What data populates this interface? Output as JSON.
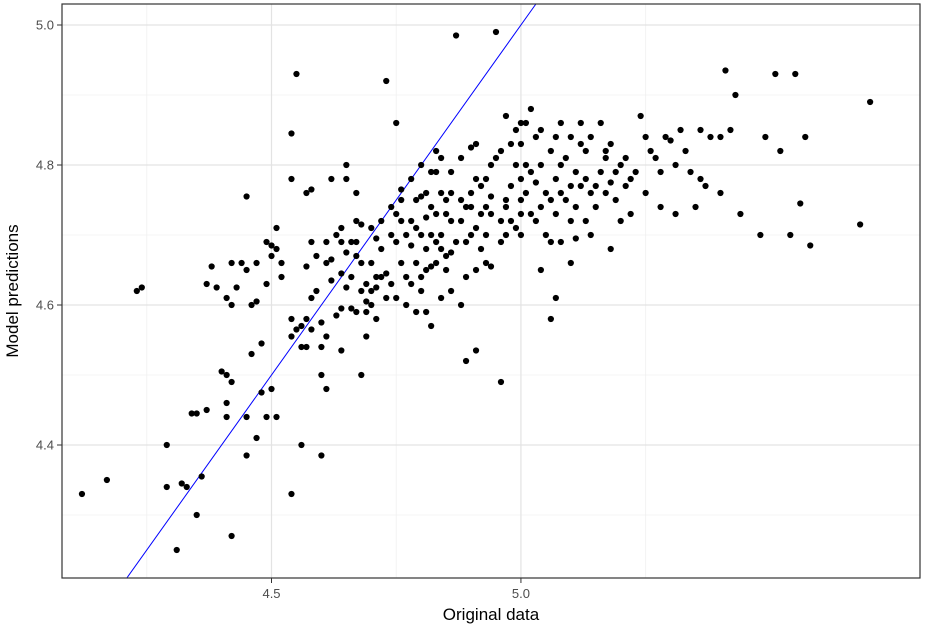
{
  "chart_data": {
    "type": "scatter",
    "title": "",
    "xlabel": "Original data",
    "ylabel": "Model predictions",
    "xlim": [
      4.08,
      5.8
    ],
    "ylim": [
      4.21,
      5.03
    ],
    "x_ticks": [
      4.5,
      5.0
    ],
    "x_tick_labels": [
      "4.5",
      "5.0"
    ],
    "y_ticks": [
      4.4,
      4.6,
      4.8,
      5.0
    ],
    "y_tick_labels": [
      "4.4",
      "4.6",
      "4.8",
      "5.0"
    ],
    "grid": true,
    "legend": "none",
    "reference_line": {
      "slope": 1,
      "intercept": 0,
      "color": "#0000ff"
    },
    "point_color": "#000000",
    "points": [
      [
        4.12,
        4.33
      ],
      [
        4.17,
        4.35
      ],
      [
        4.23,
        4.62
      ],
      [
        4.24,
        4.625
      ],
      [
        4.29,
        4.4
      ],
      [
        4.29,
        4.34
      ],
      [
        4.31,
        4.25
      ],
      [
        4.32,
        4.345
      ],
      [
        4.33,
        4.34
      ],
      [
        4.34,
        4.445
      ],
      [
        4.35,
        4.3
      ],
      [
        4.35,
        4.445
      ],
      [
        4.36,
        4.355
      ],
      [
        4.37,
        4.63
      ],
      [
        4.37,
        4.45
      ],
      [
        4.38,
        4.655
      ],
      [
        4.39,
        4.625
      ],
      [
        4.4,
        4.505
      ],
      [
        4.41,
        4.5
      ],
      [
        4.41,
        4.44
      ],
      [
        4.41,
        4.46
      ],
      [
        4.42,
        4.49
      ],
      [
        4.41,
        4.61
      ],
      [
        4.42,
        4.6
      ],
      [
        4.42,
        4.66
      ],
      [
        4.42,
        4.27
      ],
      [
        4.43,
        4.625
      ],
      [
        4.44,
        4.66
      ],
      [
        4.45,
        4.755
      ],
      [
        4.45,
        4.65
      ],
      [
        4.45,
        4.44
      ],
      [
        4.45,
        4.385
      ],
      [
        4.46,
        4.53
      ],
      [
        4.46,
        4.6
      ],
      [
        4.47,
        4.41
      ],
      [
        4.47,
        4.605
      ],
      [
        4.47,
        4.66
      ],
      [
        4.48,
        4.545
      ],
      [
        4.48,
        4.475
      ],
      [
        4.49,
        4.69
      ],
      [
        4.49,
        4.63
      ],
      [
        4.49,
        4.44
      ],
      [
        4.5,
        4.48
      ],
      [
        4.5,
        4.67
      ],
      [
        4.5,
        4.685
      ],
      [
        4.51,
        4.71
      ],
      [
        4.51,
        4.68
      ],
      [
        4.51,
        4.44
      ],
      [
        4.52,
        4.66
      ],
      [
        4.52,
        4.64
      ],
      [
        4.54,
        4.78
      ],
      [
        4.54,
        4.845
      ],
      [
        4.54,
        4.58
      ],
      [
        4.54,
        4.555
      ],
      [
        4.54,
        4.33
      ],
      [
        4.55,
        4.93
      ],
      [
        4.55,
        4.565
      ],
      [
        4.56,
        4.57
      ],
      [
        4.56,
        4.54
      ],
      [
        4.56,
        4.4
      ],
      [
        4.57,
        4.76
      ],
      [
        4.57,
        4.655
      ],
      [
        4.57,
        4.58
      ],
      [
        4.57,
        4.54
      ],
      [
        4.58,
        4.69
      ],
      [
        4.58,
        4.765
      ],
      [
        4.58,
        4.61
      ],
      [
        4.58,
        4.565
      ],
      [
        4.59,
        4.67
      ],
      [
        4.59,
        4.62
      ],
      [
        4.6,
        4.575
      ],
      [
        4.6,
        4.54
      ],
      [
        4.6,
        4.5
      ],
      [
        4.6,
        4.385
      ],
      [
        4.61,
        4.69
      ],
      [
        4.61,
        4.66
      ],
      [
        4.61,
        4.555
      ],
      [
        4.61,
        4.48
      ],
      [
        4.62,
        4.78
      ],
      [
        4.62,
        4.665
      ],
      [
        4.62,
        4.635
      ],
      [
        4.63,
        4.585
      ],
      [
        4.63,
        4.7
      ],
      [
        4.64,
        4.71
      ],
      [
        4.64,
        4.69
      ],
      [
        4.64,
        4.645
      ],
      [
        4.64,
        4.595
      ],
      [
        4.64,
        4.535
      ],
      [
        4.65,
        4.78
      ],
      [
        4.65,
        4.8
      ],
      [
        4.65,
        4.675
      ],
      [
        4.65,
        4.625
      ],
      [
        4.66,
        4.69
      ],
      [
        4.66,
        4.64
      ],
      [
        4.66,
        4.595
      ],
      [
        4.67,
        4.59
      ],
      [
        4.67,
        4.67
      ],
      [
        4.67,
        4.72
      ],
      [
        4.67,
        4.69
      ],
      [
        4.67,
        4.76
      ],
      [
        4.68,
        4.66
      ],
      [
        4.68,
        4.715
      ],
      [
        4.68,
        4.5
      ],
      [
        4.68,
        4.62
      ],
      [
        4.69,
        4.59
      ],
      [
        4.69,
        4.605
      ],
      [
        4.69,
        4.555
      ],
      [
        4.69,
        4.63
      ],
      [
        4.7,
        4.71
      ],
      [
        4.7,
        4.62
      ],
      [
        4.7,
        4.66
      ],
      [
        4.7,
        4.6
      ],
      [
        4.71,
        4.625
      ],
      [
        4.71,
        4.695
      ],
      [
        4.71,
        4.64
      ],
      [
        4.71,
        4.58
      ],
      [
        4.72,
        4.72
      ],
      [
        4.72,
        4.68
      ],
      [
        4.72,
        4.64
      ],
      [
        4.73,
        4.92
      ],
      [
        4.73,
        4.645
      ],
      [
        4.73,
        4.61
      ],
      [
        4.74,
        4.74
      ],
      [
        4.74,
        4.7
      ],
      [
        4.74,
        4.63
      ],
      [
        4.75,
        4.86
      ],
      [
        4.75,
        4.73
      ],
      [
        4.75,
        4.69
      ],
      [
        4.75,
        4.61
      ],
      [
        4.76,
        4.75
      ],
      [
        4.76,
        4.765
      ],
      [
        4.76,
        4.72
      ],
      [
        4.76,
        4.66
      ],
      [
        4.77,
        4.7
      ],
      [
        4.77,
        4.64
      ],
      [
        4.77,
        4.6
      ],
      [
        4.78,
        4.78
      ],
      [
        4.78,
        4.72
      ],
      [
        4.78,
        4.685
      ],
      [
        4.78,
        4.63
      ],
      [
        4.79,
        4.75
      ],
      [
        4.79,
        4.71
      ],
      [
        4.79,
        4.66
      ],
      [
        4.79,
        4.59
      ],
      [
        4.8,
        4.8
      ],
      [
        4.8,
        4.755
      ],
      [
        4.8,
        4.7
      ],
      [
        4.8,
        4.64
      ],
      [
        4.8,
        4.62
      ],
      [
        4.81,
        4.76
      ],
      [
        4.81,
        4.725
      ],
      [
        4.81,
        4.68
      ],
      [
        4.81,
        4.65
      ],
      [
        4.81,
        4.59
      ],
      [
        4.82,
        4.79
      ],
      [
        4.82,
        4.74
      ],
      [
        4.82,
        4.7
      ],
      [
        4.82,
        4.655
      ],
      [
        4.82,
        4.57
      ],
      [
        4.83,
        4.79
      ],
      [
        4.83,
        4.82
      ],
      [
        4.83,
        4.73
      ],
      [
        4.83,
        4.69
      ],
      [
        4.83,
        4.66
      ],
      [
        4.84,
        4.81
      ],
      [
        4.84,
        4.76
      ],
      [
        4.84,
        4.7
      ],
      [
        4.84,
        4.68
      ],
      [
        4.84,
        4.61
      ],
      [
        4.85,
        4.75
      ],
      [
        4.85,
        4.73
      ],
      [
        4.85,
        4.67
      ],
      [
        4.85,
        4.65
      ],
      [
        4.86,
        4.79
      ],
      [
        4.86,
        4.76
      ],
      [
        4.86,
        4.72
      ],
      [
        4.86,
        4.675
      ],
      [
        4.86,
        4.62
      ],
      [
        4.87,
        4.69
      ],
      [
        4.87,
        4.985
      ],
      [
        4.88,
        4.81
      ],
      [
        4.88,
        4.75
      ],
      [
        4.88,
        4.72
      ],
      [
        4.88,
        4.6
      ],
      [
        4.89,
        4.74
      ],
      [
        4.89,
        4.69
      ],
      [
        4.89,
        4.64
      ],
      [
        4.89,
        4.52
      ],
      [
        4.9,
        4.825
      ],
      [
        4.9,
        4.76
      ],
      [
        4.9,
        4.74
      ],
      [
        4.9,
        4.7
      ],
      [
        4.91,
        4.83
      ],
      [
        4.91,
        4.78
      ],
      [
        4.91,
        4.71
      ],
      [
        4.91,
        4.65
      ],
      [
        4.91,
        4.535
      ],
      [
        4.92,
        4.77
      ],
      [
        4.92,
        4.73
      ],
      [
        4.92,
        4.68
      ],
      [
        4.93,
        4.78
      ],
      [
        4.93,
        4.74
      ],
      [
        4.93,
        4.7
      ],
      [
        4.93,
        4.66
      ],
      [
        4.94,
        4.8
      ],
      [
        4.94,
        4.755
      ],
      [
        4.94,
        4.73
      ],
      [
        4.94,
        4.655
      ],
      [
        4.95,
        4.81
      ],
      [
        4.95,
        4.99
      ],
      [
        4.96,
        4.82
      ],
      [
        4.96,
        4.72
      ],
      [
        4.96,
        4.69
      ],
      [
        4.96,
        4.49
      ],
      [
        4.97,
        4.87
      ],
      [
        4.97,
        4.75
      ],
      [
        4.97,
        4.74
      ],
      [
        4.97,
        4.7
      ],
      [
        4.98,
        4.83
      ],
      [
        4.98,
        4.77
      ],
      [
        4.98,
        4.72
      ],
      [
        4.99,
        4.85
      ],
      [
        4.99,
        4.8
      ],
      [
        4.99,
        4.71
      ],
      [
        5.0,
        4.86
      ],
      [
        5.0,
        4.83
      ],
      [
        5.0,
        4.78
      ],
      [
        5.0,
        4.75
      ],
      [
        5.0,
        4.73
      ],
      [
        5.0,
        4.7
      ],
      [
        5.01,
        4.86
      ],
      [
        5.01,
        4.8
      ],
      [
        5.01,
        4.76
      ],
      [
        5.02,
        4.88
      ],
      [
        5.02,
        4.79
      ],
      [
        5.02,
        4.73
      ],
      [
        5.03,
        4.84
      ],
      [
        5.03,
        4.775
      ],
      [
        5.03,
        4.72
      ],
      [
        5.04,
        4.85
      ],
      [
        5.04,
        4.8
      ],
      [
        5.04,
        4.74
      ],
      [
        5.04,
        4.65
      ],
      [
        5.05,
        4.76
      ],
      [
        5.05,
        4.7
      ],
      [
        5.06,
        4.82
      ],
      [
        5.06,
        4.75
      ],
      [
        5.06,
        4.69
      ],
      [
        5.06,
        4.58
      ],
      [
        5.07,
        4.84
      ],
      [
        5.07,
        4.78
      ],
      [
        5.07,
        4.73
      ],
      [
        5.07,
        4.61
      ],
      [
        5.08,
        4.86
      ],
      [
        5.08,
        4.8
      ],
      [
        5.08,
        4.76
      ],
      [
        5.08,
        4.69
      ],
      [
        5.09,
        4.81
      ],
      [
        5.09,
        4.75
      ],
      [
        5.1,
        4.84
      ],
      [
        5.1,
        4.77
      ],
      [
        5.1,
        4.72
      ],
      [
        5.1,
        4.66
      ],
      [
        5.11,
        4.79
      ],
      [
        5.11,
        4.74
      ],
      [
        5.11,
        4.695
      ],
      [
        5.12,
        4.86
      ],
      [
        5.12,
        4.83
      ],
      [
        5.12,
        4.77
      ],
      [
        5.13,
        4.78
      ],
      [
        5.13,
        4.72
      ],
      [
        5.13,
        4.82
      ],
      [
        5.14,
        4.84
      ],
      [
        5.14,
        4.76
      ],
      [
        5.14,
        4.7
      ],
      [
        5.15,
        4.77
      ],
      [
        5.15,
        4.74
      ],
      [
        5.16,
        4.86
      ],
      [
        5.16,
        4.79
      ],
      [
        5.17,
        4.81
      ],
      [
        5.17,
        4.76
      ],
      [
        5.17,
        4.82
      ],
      [
        5.18,
        4.83
      ],
      [
        5.18,
        4.775
      ],
      [
        5.18,
        4.68
      ],
      [
        5.19,
        4.79
      ],
      [
        5.19,
        4.75
      ],
      [
        5.2,
        4.8
      ],
      [
        5.2,
        4.72
      ],
      [
        5.21,
        4.81
      ],
      [
        5.21,
        4.77
      ],
      [
        5.22,
        4.78
      ],
      [
        5.22,
        4.73
      ],
      [
        5.23,
        4.79
      ],
      [
        5.24,
        4.87
      ],
      [
        5.25,
        4.84
      ],
      [
        5.25,
        4.76
      ],
      [
        5.26,
        4.82
      ],
      [
        5.27,
        4.81
      ],
      [
        5.28,
        4.79
      ],
      [
        5.28,
        4.74
      ],
      [
        5.29,
        4.84
      ],
      [
        5.3,
        4.835
      ],
      [
        5.31,
        4.8
      ],
      [
        5.31,
        4.73
      ],
      [
        5.32,
        4.85
      ],
      [
        5.33,
        4.82
      ],
      [
        5.34,
        4.79
      ],
      [
        5.35,
        4.74
      ],
      [
        5.36,
        4.85
      ],
      [
        5.36,
        4.78
      ],
      [
        5.37,
        4.77
      ],
      [
        5.38,
        4.84
      ],
      [
        5.4,
        4.84
      ],
      [
        5.4,
        4.76
      ],
      [
        5.41,
        4.935
      ],
      [
        5.42,
        4.85
      ],
      [
        5.43,
        4.9
      ],
      [
        5.44,
        4.73
      ],
      [
        5.48,
        4.7
      ],
      [
        5.49,
        4.84
      ],
      [
        5.51,
        4.93
      ],
      [
        5.52,
        4.82
      ],
      [
        5.54,
        4.7
      ],
      [
        5.55,
        4.93
      ],
      [
        5.56,
        4.745
      ],
      [
        5.57,
        4.84
      ],
      [
        5.58,
        4.685
      ],
      [
        5.68,
        4.715
      ],
      [
        5.7,
        4.89
      ]
    ]
  }
}
